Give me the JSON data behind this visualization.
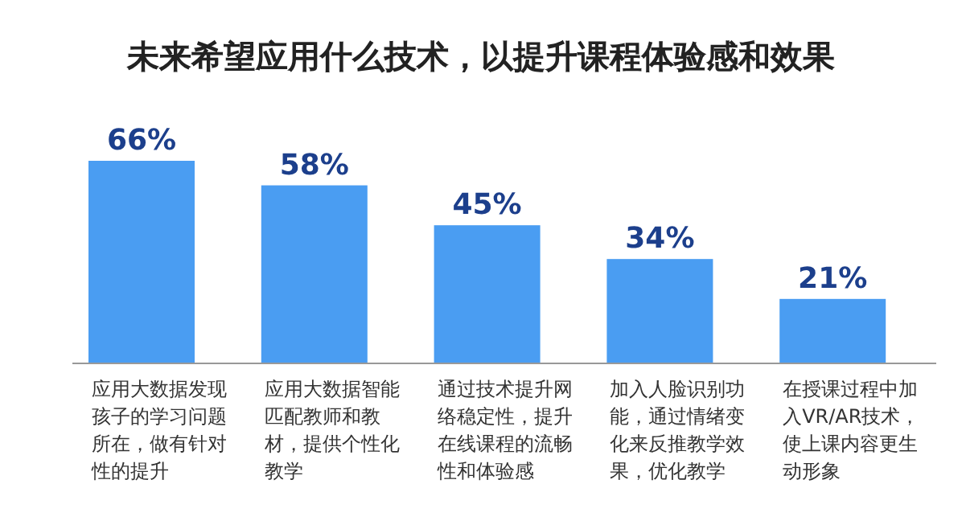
{
  "chart_data": {
    "type": "bar",
    "title": "未来希望应用什么技术，以提升课程体验感和效果",
    "categories": [
      "应用大数据发现孩子的学习问题所在，做有针对性的提升",
      "应用大数据智能匹配教师和教材，提供个性化教学",
      "通过技术提升网络稳定性，提升在线课程的流畅性和体验感",
      "加入人脸识别功能，通过情绪变化来反推教学效果，优化教学",
      "在授课过程中加入VR/AR技术，使上课内容更生动形象"
    ],
    "values": [
      66,
      58,
      45,
      34,
      21
    ],
    "value_labels": [
      "66%",
      "58%",
      "45%",
      "34%",
      "21%"
    ],
    "color": "#4a9df2"
  }
}
